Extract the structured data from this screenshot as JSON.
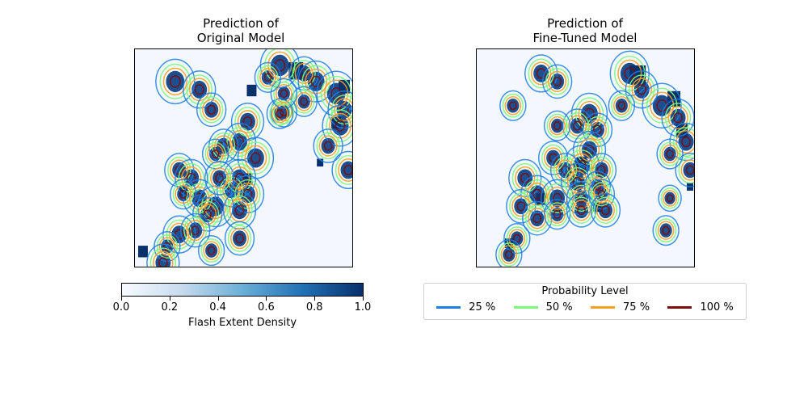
{
  "chart_data": [
    {
      "type": "heatmap",
      "title": "Prediction of\nOriginal Model",
      "title_lines": [
        "Prediction of",
        "Original Model"
      ],
      "xticks": [],
      "yticks": [],
      "colormap": "Blues",
      "value_range": [
        0,
        1
      ],
      "contour_levels": [
        0.25,
        0.5,
        0.75,
        1.0
      ]
    },
    {
      "type": "heatmap",
      "title": "Prediction of\nFine-Tuned Model",
      "title_lines": [
        "Prediction of",
        "Fine-Tuned Model"
      ],
      "xticks": [],
      "yticks": [],
      "colormap": "Blues",
      "value_range": [
        0,
        1
      ],
      "contour_levels": [
        0.25,
        0.5,
        0.75,
        1.0
      ]
    }
  ],
  "colorbar": {
    "label": "Flash Extent Density",
    "ticks": [
      "0.0",
      "0.2",
      "0.4",
      "0.6",
      "0.8",
      "1.0"
    ],
    "tick_values": [
      0.0,
      0.2,
      0.4,
      0.6,
      0.8,
      1.0
    ],
    "range": [
      0,
      1
    ],
    "gradient": [
      "#f7fbff",
      "#c6dbef",
      "#6baed6",
      "#2171b5",
      "#08306b"
    ]
  },
  "legend": {
    "title": "Probability Level",
    "items": [
      {
        "label": "25 %",
        "color": "#1f7fe0"
      },
      {
        "label": "50 %",
        "color": "#7dfa7d"
      },
      {
        "label": "75 %",
        "color": "#f5a020"
      },
      {
        "label": "100 %",
        "color": "#7f0a0a"
      }
    ]
  }
}
